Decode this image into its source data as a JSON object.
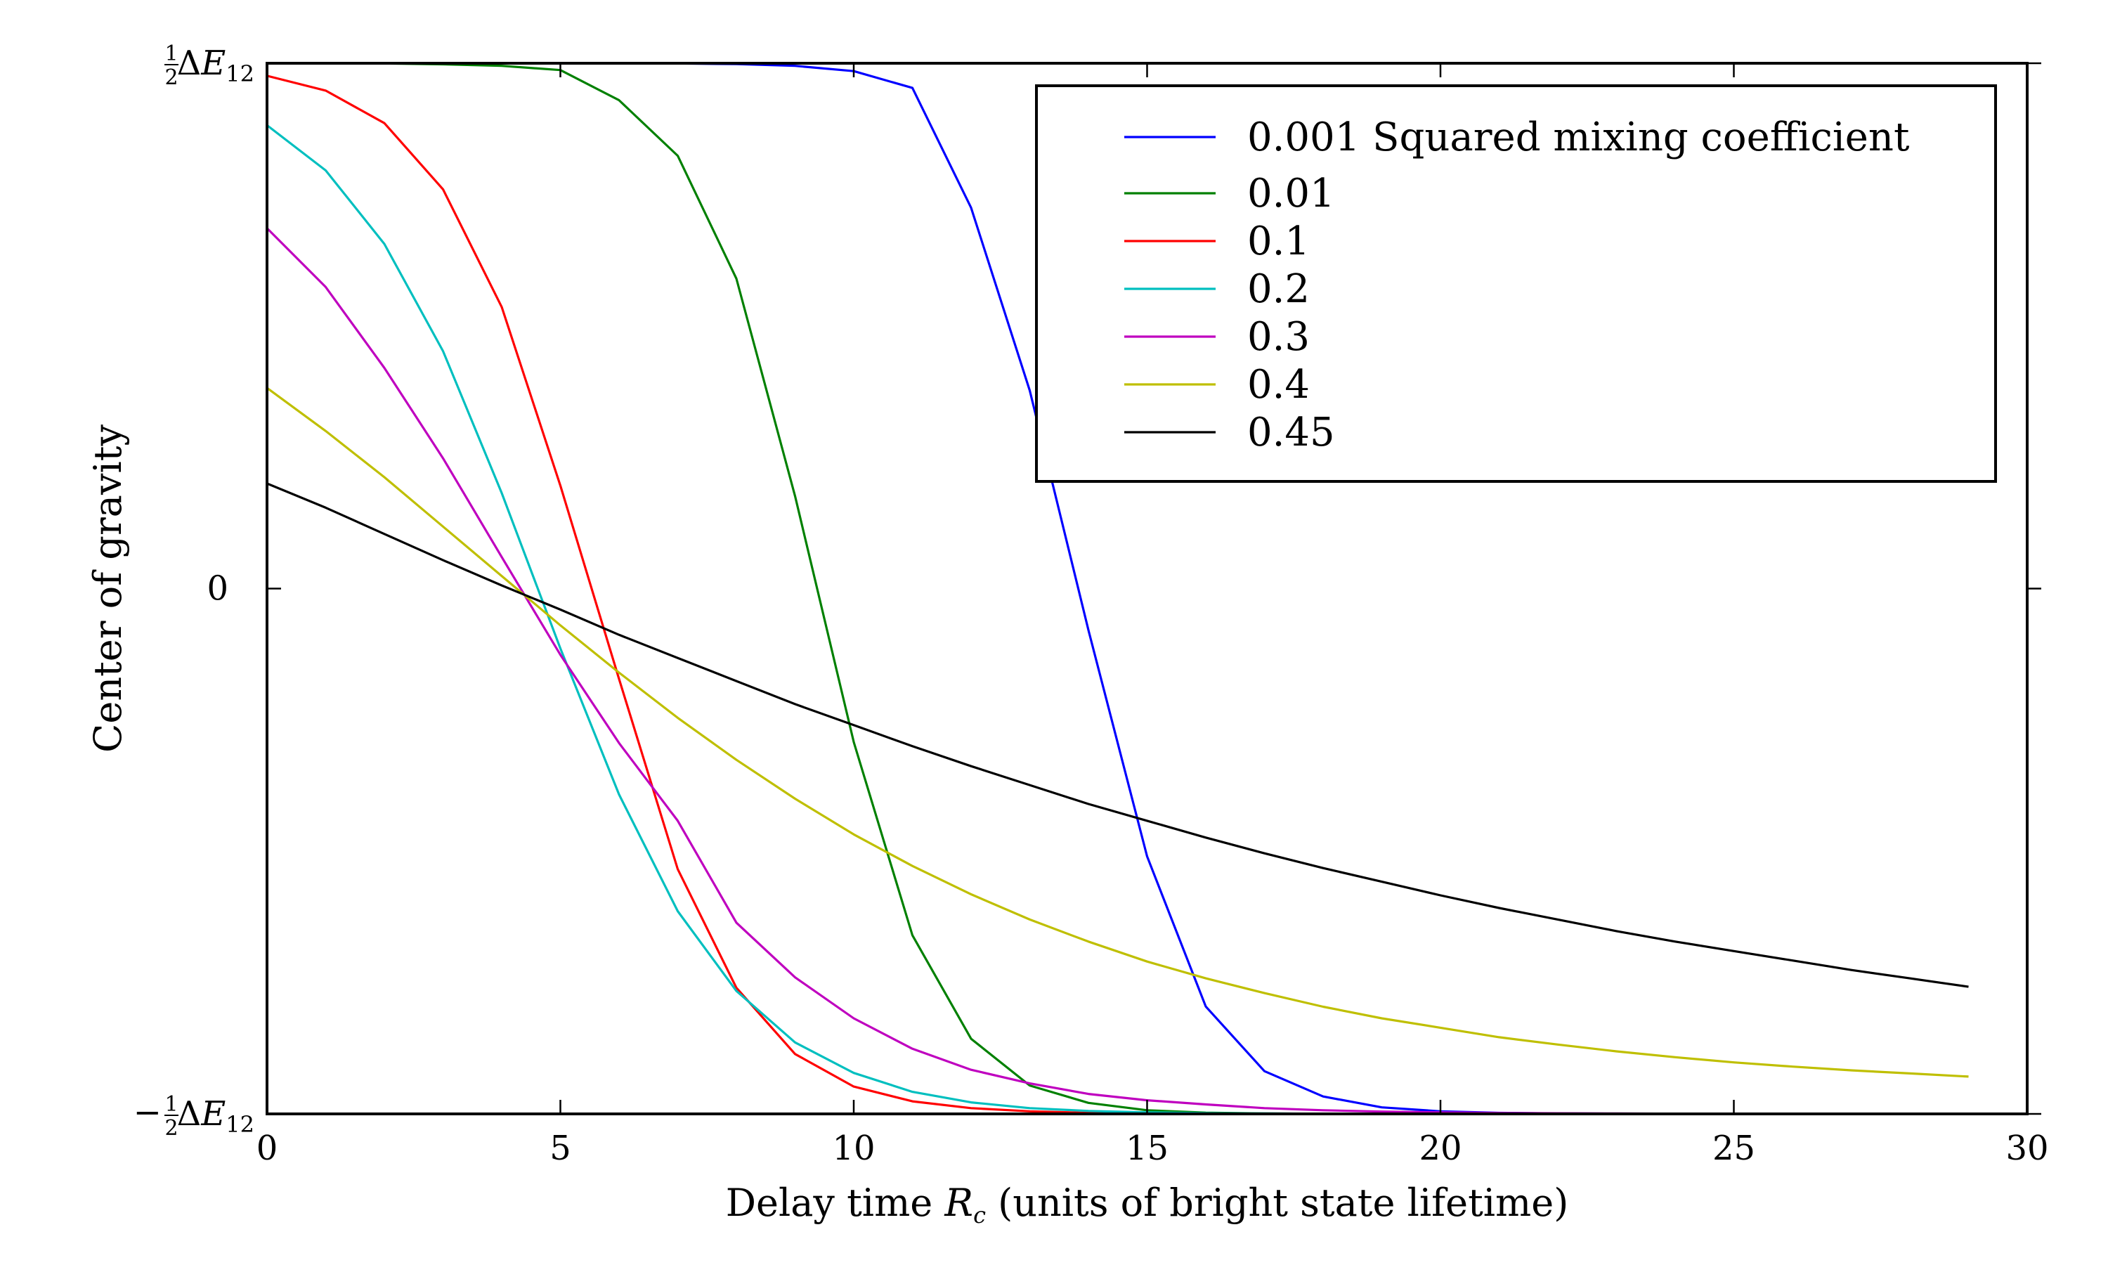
{
  "chart_data": {
    "type": "line",
    "xlabel": "Delay time R_c (units of bright state lifetime)",
    "xlabel_parts": {
      "pre": "Delay time ",
      "var": "R",
      "sub": "c",
      "post": " (units of bright state lifetime)"
    },
    "ylabel": "Center of gravity",
    "xlim": [
      0,
      30
    ],
    "ylim": [
      -0.5,
      0.5
    ],
    "x_ticks": [
      {
        "value": 0,
        "label": "0"
      },
      {
        "value": 5,
        "label": "5"
      },
      {
        "value": 10,
        "label": "10"
      },
      {
        "value": 15,
        "label": "15"
      },
      {
        "value": 20,
        "label": "20"
      },
      {
        "value": 25,
        "label": "25"
      },
      {
        "value": 30,
        "label": "30"
      }
    ],
    "y_ticks": [
      {
        "value": 0.5,
        "label": "½ΔE₁₂"
      },
      {
        "value": 0,
        "label": "0"
      },
      {
        "value": -0.5,
        "label": "−½ΔE₁₂"
      }
    ],
    "y_tick_parts": {
      "sign": "−",
      "num": "1",
      "den": "2",
      "sym": "ΔE",
      "sub": "12"
    },
    "grid": false,
    "legend_position": "top-right",
    "x": [
      0,
      1,
      2,
      3,
      4,
      5,
      6,
      7,
      8,
      9,
      10,
      11,
      12,
      13,
      14,
      15,
      16,
      17,
      18,
      19,
      20,
      21,
      22,
      23,
      24,
      25,
      26,
      27,
      28,
      29
    ],
    "series": [
      {
        "name": "0.001 Squared mixing coefficient",
        "color": "#0000ff",
        "values": [
          0.5,
          0.5,
          0.5,
          0.5,
          0.5,
          0.5,
          0.5,
          0.4998,
          0.4992,
          0.4975,
          0.4925,
          0.4765,
          0.3625,
          0.1885,
          -0.0395,
          -0.2549,
          -0.3978,
          -0.4593,
          -0.4834,
          -0.4938,
          -0.4975,
          -0.499,
          -0.4996,
          -0.4998,
          -0.4999,
          -0.5,
          -0.5,
          -0.5,
          -0.5,
          -0.5
        ]
      },
      {
        "name": "0.01",
        "color": "#008000",
        "values": [
          0.5,
          0.5,
          0.4998,
          0.499,
          0.4975,
          0.4935,
          0.4648,
          0.412,
          0.295,
          0.088,
          -0.146,
          -0.33,
          -0.4285,
          -0.473,
          -0.4895,
          -0.4965,
          -0.4988,
          -0.4996,
          -0.4999,
          -0.5,
          -0.5,
          -0.5,
          -0.5,
          -0.5,
          -0.5,
          -0.5,
          -0.5,
          -0.5,
          -0.5,
          -0.5
        ]
      },
      {
        "name": "0.1",
        "color": "#ff0000",
        "values": [
          0.488,
          0.474,
          0.443,
          0.38,
          0.268,
          0.098,
          -0.086,
          -0.267,
          -0.38,
          -0.443,
          -0.474,
          -0.488,
          -0.4945,
          -0.4975,
          -0.499,
          -0.4996,
          -0.4998,
          -0.4999,
          -0.5,
          -0.5,
          -0.5,
          -0.5,
          -0.5,
          -0.5,
          -0.5,
          -0.5,
          -0.5,
          -0.5,
          -0.5,
          -0.5
        ]
      },
      {
        "name": "0.2",
        "color": "#00bfbf",
        "values": [
          0.441,
          0.398,
          0.328,
          0.226,
          0.091,
          -0.057,
          -0.196,
          -0.307,
          -0.383,
          -0.432,
          -0.461,
          -0.479,
          -0.489,
          -0.4945,
          -0.4972,
          -0.4986,
          -0.4993,
          -0.4996,
          -0.4998,
          -0.4999,
          -0.5,
          -0.5,
          -0.5,
          -0.5,
          -0.5,
          -0.5,
          -0.5,
          -0.5,
          -0.5,
          -0.5
        ]
      },
      {
        "name": "0.3",
        "color": "#bf00bf",
        "values": [
          0.343,
          0.287,
          0.21,
          0.124,
          0.03,
          -0.063,
          -0.147,
          -0.221,
          -0.318,
          -0.37,
          -0.409,
          -0.438,
          -0.458,
          -0.471,
          -0.481,
          -0.487,
          -0.491,
          -0.4945,
          -0.4965,
          -0.4978,
          -0.4986,
          -0.4991,
          -0.4994,
          -0.4996,
          -0.4998,
          -0.4999,
          -0.5,
          -0.5,
          -0.5,
          -0.5
        ]
      },
      {
        "name": "0.4",
        "color": "#bfbf00",
        "values": [
          0.191,
          0.15,
          0.106,
          0.059,
          0.012,
          -0.035,
          -0.08,
          -0.123,
          -0.163,
          -0.2,
          -0.234,
          -0.264,
          -0.291,
          -0.315,
          -0.336,
          -0.355,
          -0.371,
          -0.385,
          -0.398,
          -0.409,
          -0.418,
          -0.427,
          -0.434,
          -0.4405,
          -0.446,
          -0.451,
          -0.455,
          -0.4585,
          -0.4615,
          -0.4645
        ]
      },
      {
        "name": "0.45",
        "color": "#000000",
        "values": [
          0.1,
          0.077,
          0.052,
          0.027,
          0.003,
          -0.02,
          -0.044,
          -0.066,
          -0.088,
          -0.11,
          -0.13,
          -0.15,
          -0.169,
          -0.187,
          -0.205,
          -0.221,
          -0.237,
          -0.252,
          -0.266,
          -0.279,
          -0.292,
          -0.304,
          -0.315,
          -0.326,
          -0.336,
          -0.345,
          -0.354,
          -0.363,
          -0.371,
          -0.379
        ]
      }
    ]
  }
}
